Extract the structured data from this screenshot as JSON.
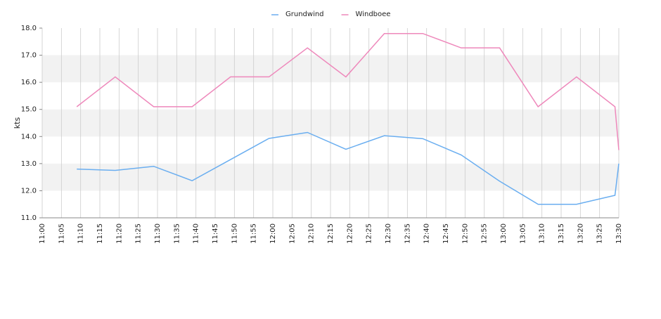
{
  "chart_data": {
    "type": "line",
    "y_label": "kts",
    "x": [
      "11:09",
      "11:19",
      "11:29",
      "11:39",
      "11:49",
      "11:59",
      "12:09",
      "12:19",
      "12:29",
      "12:39",
      "12:49",
      "12:59",
      "13:09",
      "13:19",
      "13:29",
      "13:30"
    ],
    "series": [
      {
        "name": "Grundwind",
        "color": "#6aaef0",
        "values": [
          12.8,
          12.75,
          12.9,
          12.37,
          13.15,
          13.93,
          14.15,
          13.53,
          14.03,
          13.92,
          13.32,
          12.35,
          11.5,
          11.5,
          11.83,
          13.0
        ]
      },
      {
        "name": "Windboee",
        "color": "#ee88bb",
        "values": [
          15.1,
          16.2,
          15.1,
          15.1,
          16.2,
          16.2,
          17.27,
          16.2,
          17.8,
          17.8,
          17.27,
          17.27,
          15.1,
          16.2,
          15.1,
          13.5
        ]
      }
    ],
    "xlim": [
      "11:00",
      "13:30"
    ],
    "xticks": [
      "11:00",
      "11:05",
      "11:10",
      "11:15",
      "11:20",
      "11:25",
      "11:30",
      "11:35",
      "11:40",
      "11:45",
      "11:50",
      "11:55",
      "12:00",
      "12:05",
      "12:10",
      "12:15",
      "12:20",
      "12:25",
      "12:30",
      "12:35",
      "12:40",
      "12:45",
      "12:50",
      "12:55",
      "13:00",
      "13:05",
      "13:10",
      "13:15",
      "13:20",
      "13:25",
      "13:30"
    ],
    "ylim": [
      11,
      18
    ],
    "yticks": [
      {
        "value": 11,
        "label": "11.0"
      },
      {
        "value": 12,
        "label": "12.0"
      },
      {
        "value": 13,
        "label": "13.0"
      },
      {
        "value": 14,
        "label": "14.0"
      },
      {
        "value": 15,
        "label": "15.0"
      },
      {
        "value": 16,
        "label": "16.0"
      },
      {
        "value": 17,
        "label": "17.0"
      },
      {
        "value": 18,
        "label": "18.0"
      }
    ],
    "grid": true,
    "legend": "top"
  }
}
